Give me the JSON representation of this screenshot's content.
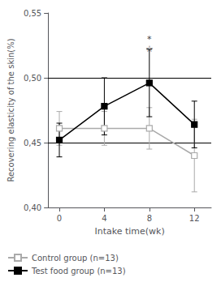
{
  "chart_data": {
    "type": "line",
    "x": [
      0,
      4,
      8,
      12
    ],
    "series": [
      {
        "name": "Control group (n=13)",
        "color": "#aaaaaa",
        "marker": "open_square",
        "values": [
          0.461,
          0.461,
          0.461,
          0.44
        ],
        "errors": [
          0.013,
          0.013,
          0.016,
          0.028
        ]
      },
      {
        "name": "Test food group (n=13)",
        "color": "#000000",
        "marker": "square",
        "values": [
          0.452,
          0.478,
          0.496,
          0.464
        ],
        "errors": [
          0.013,
          0.022,
          0.026,
          0.018
        ]
      }
    ],
    "xlabel": "Intake time(wk)",
    "ylabel": "Recovering elasticity of the skin(%)",
    "xlim": [
      -1.0,
      13.5
    ],
    "xticks": [
      0,
      4,
      8,
      12
    ],
    "ylim": [
      0.4,
      0.55
    ],
    "yticks": [
      {
        "value": 0.4,
        "label": "0,40"
      },
      {
        "value": 0.45,
        "label": "0,45"
      },
      {
        "value": 0.5,
        "label": "0,50"
      },
      {
        "value": 0.55,
        "label": "0,55"
      }
    ],
    "hlines": [
      0.45,
      0.5
    ],
    "annotations": [
      {
        "text": "*",
        "x": 8,
        "y": 0.53
      },
      {
        "text": "☆",
        "x": 8,
        "y": 0.522
      }
    ],
    "legend": "lower left",
    "grid": false
  }
}
